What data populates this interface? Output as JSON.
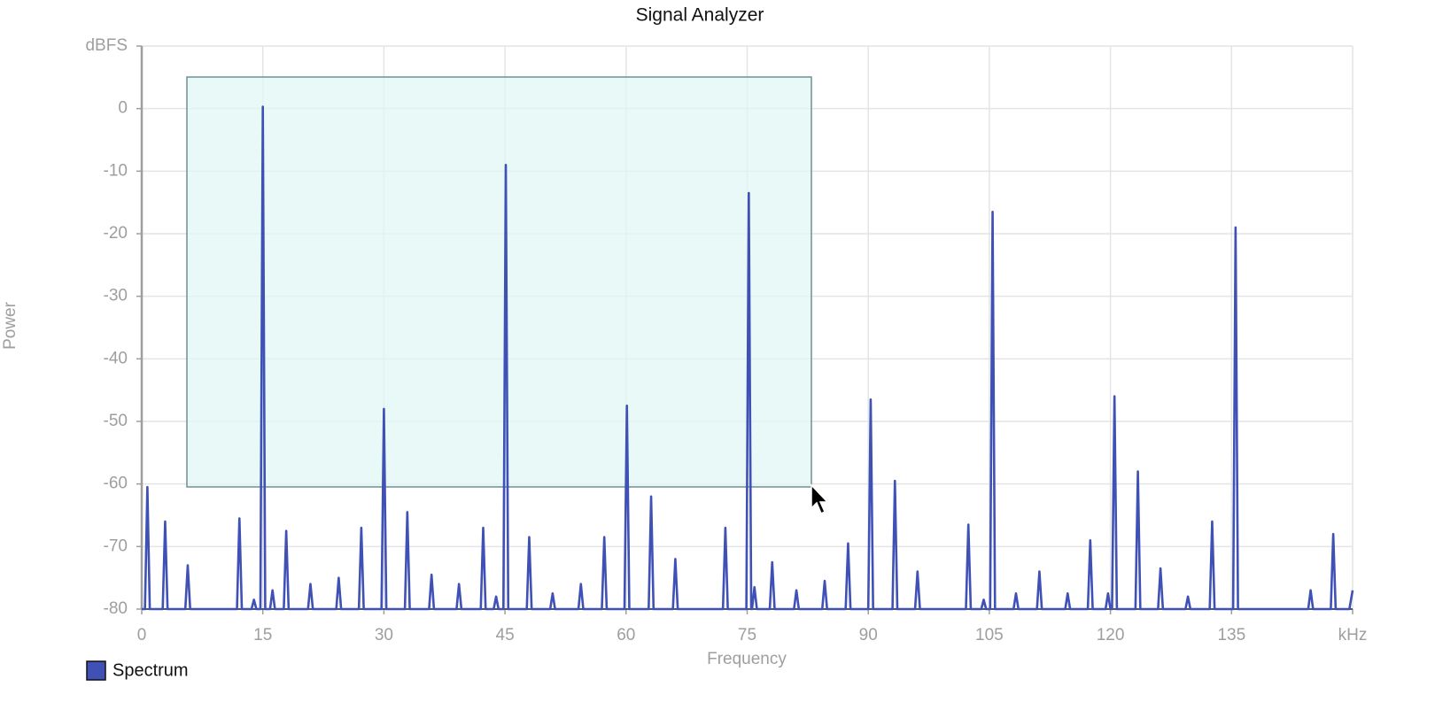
{
  "chart_data": {
    "type": "line",
    "title": "Signal Analyzer",
    "x_label": "Frequency",
    "y_label": "Power",
    "xlim": [
      0,
      150
    ],
    "ylim": [
      -80,
      10
    ],
    "xticks": [
      0,
      15,
      30,
      45,
      60,
      75,
      90,
      105,
      120,
      135,
      {
        "value": 150,
        "label": "kHz"
      }
    ],
    "yticks": [
      -80,
      -70,
      -60,
      -50,
      -40,
      -30,
      -20,
      -10,
      0,
      {
        "value": 10,
        "label": "dBFS"
      }
    ],
    "grid": true,
    "legend": "bottom-left",
    "x": [
      0,
      0.4,
      0.7,
      1.0,
      2.6,
      2.9,
      3.2,
      5.4,
      5.7,
      6.0,
      11.8,
      12.1,
      12.4,
      13.6,
      13.9,
      14.2,
      14.7,
      15,
      15.3,
      15.9,
      16.2,
      16.5,
      17.6,
      17.9,
      18.2,
      20.6,
      20.9,
      21.2,
      24.1,
      24.4,
      24.7,
      26.9,
      27.2,
      27.5,
      29.7,
      30,
      30.3,
      32.6,
      32.9,
      33.2,
      35.6,
      35.9,
      36.2,
      39,
      39.3,
      39.6,
      42,
      42.3,
      42.6,
      43.6,
      43.9,
      44.2,
      44.8,
      45.1,
      45.4,
      47.7,
      48,
      48.3,
      50.6,
      50.9,
      51.2,
      54.1,
      54.4,
      54.7,
      57,
      57.3,
      57.6,
      59.8,
      60.1,
      60.4,
      62.8,
      63.1,
      63.4,
      65.8,
      66.1,
      66.4,
      72,
      72.3,
      72.6,
      74.9,
      75.2,
      75.5,
      75.6,
      75.9,
      76.2,
      77.8,
      78.1,
      78.4,
      80.8,
      81.1,
      81.4,
      84.3,
      84.6,
      84.9,
      87.2,
      87.5,
      87.8,
      90,
      90.3,
      90.6,
      93,
      93.3,
      93.6,
      95.8,
      96.1,
      96.4,
      102.1,
      102.4,
      102.7,
      104,
      104.3,
      104.6,
      105.1,
      105.4,
      105.7,
      108,
      108.3,
      108.6,
      110.9,
      111.2,
      111.5,
      114.4,
      114.7,
      115,
      117.2,
      117.5,
      117.8,
      119.4,
      119.7,
      120,
      120.2,
      120.5,
      120.8,
      123.1,
      123.4,
      123.7,
      125.9,
      126.2,
      126.5,
      129.3,
      129.6,
      129.9,
      132.3,
      132.6,
      132.9,
      135.2,
      135.5,
      135.8,
      144.5,
      144.8,
      145.1,
      147.3,
      147.6,
      147.9,
      149.6,
      150
    ],
    "series": [
      {
        "name": "Spectrum",
        "color": "#3f51b5",
        "values": [
          -80,
          -80,
          -60.5,
          -80,
          -80,
          -66,
          -80,
          -80,
          -73,
          -80,
          -80,
          -65.5,
          -80,
          -80,
          -78.5,
          -80,
          -80,
          0.3,
          -80,
          -80,
          -77,
          -80,
          -80,
          -67.5,
          -80,
          -80,
          -76,
          -80,
          -80,
          -75,
          -80,
          -80,
          -67,
          -80,
          -80,
          -48,
          -80,
          -80,
          -64.5,
          -80,
          -80,
          -74.5,
          -80,
          -80,
          -76,
          -80,
          -80,
          -67,
          -80,
          -80,
          -78,
          -80,
          -80,
          -9,
          -80,
          -80,
          -68.5,
          -80,
          -80,
          -77.5,
          -80,
          -80,
          -76,
          -80,
          -80,
          -68.5,
          -80,
          -80,
          -47.5,
          -80,
          -80,
          -62,
          -80,
          -80,
          -72,
          -80,
          -80,
          -67,
          -80,
          -80,
          -13.5,
          -80,
          -80,
          -76.5,
          -80,
          -80,
          -72.5,
          -80,
          -80,
          -77,
          -80,
          -80,
          -75.5,
          -80,
          -80,
          -69.5,
          -80,
          -80,
          -46.5,
          -80,
          -80,
          -59.5,
          -80,
          -80,
          -74,
          -80,
          -80,
          -66.5,
          -80,
          -80,
          -78.5,
          -80,
          -80,
          -16.5,
          -80,
          -80,
          -77.5,
          -80,
          -80,
          -74,
          -80,
          -80,
          -77.5,
          -80,
          -80,
          -69,
          -80,
          -80,
          -77.5,
          -80,
          -80,
          -46,
          -80,
          -80,
          -58,
          -80,
          -80,
          -73.5,
          -80,
          -80,
          -78,
          -80,
          -80,
          -66,
          -80,
          -80,
          -19,
          -80,
          -80,
          -77,
          -80,
          -80,
          -68,
          -80,
          -80,
          -77
        ]
      }
    ]
  }
}
